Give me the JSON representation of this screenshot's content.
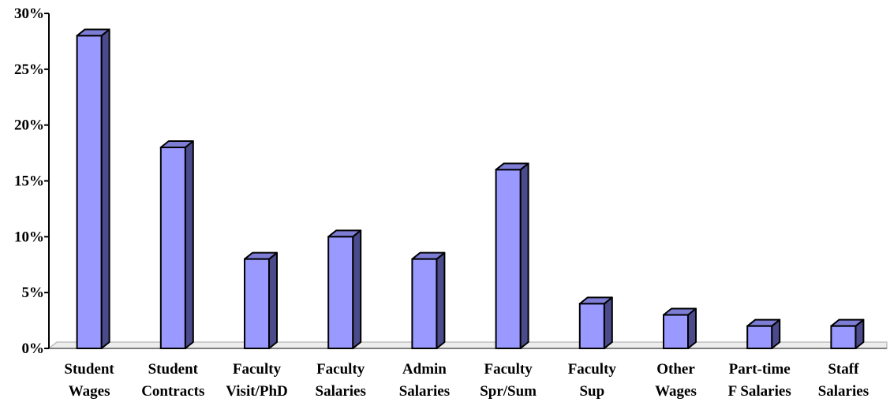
{
  "chart_data": {
    "type": "bar",
    "categories": [
      [
        "Student",
        "Wages"
      ],
      [
        "Student",
        "Contracts"
      ],
      [
        "Faculty",
        "Visit/PhD"
      ],
      [
        "Faculty",
        "Salaries"
      ],
      [
        "Admin",
        "Salaries"
      ],
      [
        "Faculty",
        "Spr/Sum"
      ],
      [
        "Faculty",
        "Sup"
      ],
      [
        "Other",
        "Wages"
      ],
      [
        "Part-time",
        "F Salaries"
      ],
      [
        "Staff",
        "Salaries"
      ]
    ],
    "values": [
      28,
      18,
      8,
      10,
      8,
      16,
      4,
      3,
      2,
      2
    ],
    "ylim": [
      0,
      30
    ],
    "yticks": [
      "0%",
      "5%",
      "10%",
      "15%",
      "20%",
      "25%",
      "30%"
    ],
    "ytick_values": [
      0,
      5,
      10,
      15,
      20,
      25,
      30
    ],
    "title": "",
    "xlabel": "",
    "ylabel": "",
    "grid": false,
    "style": "3d-bar",
    "colors": {
      "bar_front": "#9999ff",
      "bar_top": "#7d7dd6",
      "bar_side": "#4b4b8c",
      "outline": "#000000",
      "floor": "#c0c0c0"
    }
  }
}
